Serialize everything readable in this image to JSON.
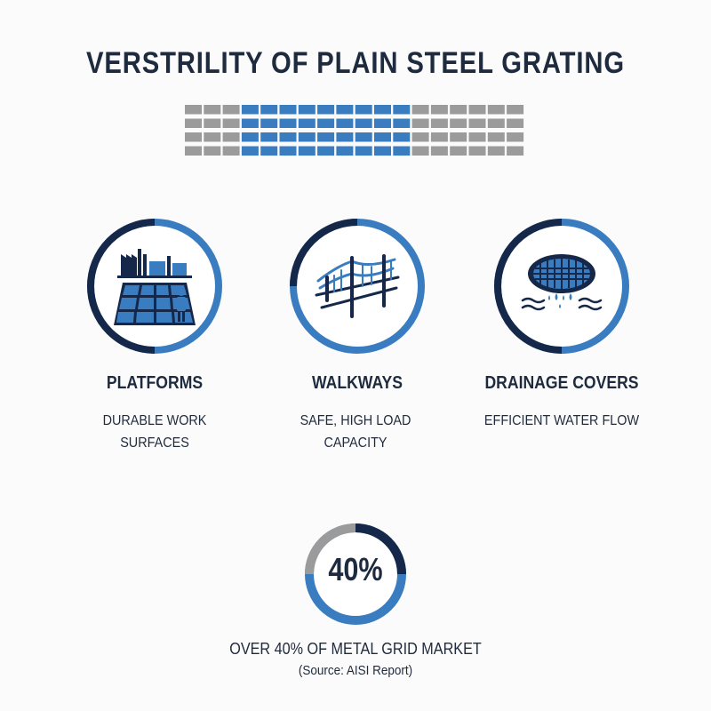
{
  "title": "VERSTRILITY OF PLAIN STEEL GRATING",
  "colors": {
    "navy": "#15284a",
    "blue": "#3a7cc0",
    "gray": "#9b9b9b",
    "text": "#1e2b3f"
  },
  "grating_graphic": {
    "rows": 4,
    "columns": 18,
    "highlighted_columns": [
      3,
      11
    ]
  },
  "applications": [
    {
      "title": "PLATFORMS",
      "description": "DURABLE WORK SURFACES",
      "icon": "factory-platform-icon"
    },
    {
      "title": "WALKWAYS",
      "description": "SAFE, HIGH LOAD CAPACITY",
      "icon": "bridge-walkway-icon"
    },
    {
      "title": "DRAINAGE COVERS",
      "description": "EFFICIENT WATER FLOW",
      "icon": "drain-grate-icon"
    }
  ],
  "stat": {
    "value": "40%",
    "percent": 40,
    "label": "OVER 40% OF METAL GRID MARKET",
    "source": "(Source: AISI Report)"
  }
}
